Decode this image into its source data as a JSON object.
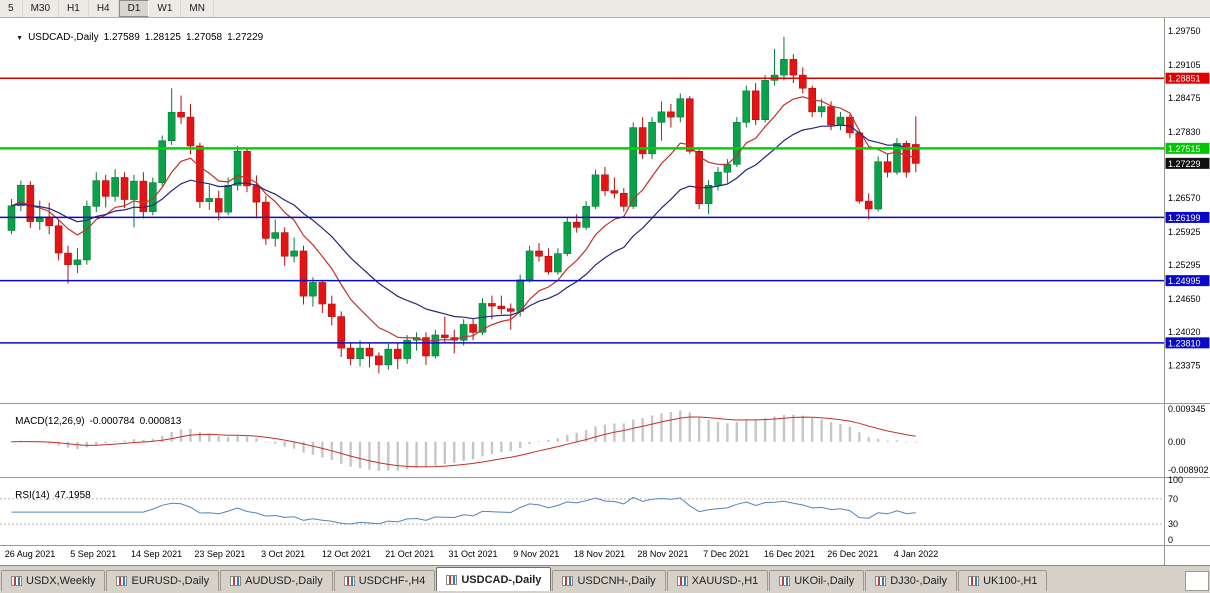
{
  "colors": {
    "bull": "#0aa14b",
    "bull_border": "#067a38",
    "bear": "#e51414",
    "bear_border": "#b30c0c",
    "ma_fast": "#c0322a",
    "ma_slow": "#26267e",
    "macd_hist": "#c6c6c6",
    "macd_signal": "#c0322a",
    "rsi_line": "#4f86c0",
    "separator": "#9b988f"
  },
  "toolbar": {
    "timeframes": [
      {
        "label": "5",
        "active": false
      },
      {
        "label": "M30",
        "active": false
      },
      {
        "label": "H1",
        "active": false
      },
      {
        "label": "H4",
        "active": false
      },
      {
        "label": "D1",
        "active": true
      },
      {
        "label": "W1",
        "active": false
      },
      {
        "label": "MN",
        "active": false
      }
    ]
  },
  "chart": {
    "symbol_timeframe": "USDCAD-,Daily",
    "open": "1.27589",
    "high": "1.28125",
    "low": "1.27058",
    "close": "1.27229"
  },
  "price_axis": {
    "ticks": [
      "1.29750",
      "1.29105",
      "1.28475",
      "1.27830",
      "1.26570",
      "1.25925",
      "1.25295",
      "1.24650",
      "1.24020",
      "1.23375"
    ],
    "line_labels": [
      {
        "text": "1.28851",
        "bg": "#e00000",
        "fg": "#ffffff"
      },
      {
        "text": "1.27515",
        "bg": "#00c800",
        "fg": "#ffffff"
      },
      {
        "text": "1.27229",
        "bg": "#101010",
        "fg": "#ffffff"
      },
      {
        "text": "1.26199",
        "bg": "#0909c8",
        "fg": "#ffffff"
      },
      {
        "text": "1.24995",
        "bg": "#0909c8",
        "fg": "#ffffff"
      },
      {
        "text": "1.23810",
        "bg": "#0909c8",
        "fg": "#ffffff"
      }
    ]
  },
  "macd": {
    "name": "MACD(12,26,9)",
    "value_main": "-0.000784",
    "value_signal": "0.000813",
    "axis_max": "0.009345",
    "axis_zero": "0.00",
    "axis_min": "-0.008902",
    "params": [
      12,
      26,
      9
    ]
  },
  "rsi": {
    "name": "RSI(14)",
    "value": "47.1958",
    "period": 14,
    "levels": [
      100,
      70,
      30,
      0
    ]
  },
  "tabs": [
    {
      "label": "USDX,Weekly",
      "active": false
    },
    {
      "label": "EURUSD-,Daily",
      "active": false
    },
    {
      "label": "AUDUSD-,Daily",
      "active": false
    },
    {
      "label": "USDCHF-,H4",
      "active": false
    },
    {
      "label": "USDCAD-,Daily",
      "active": true
    },
    {
      "label": "USDCNH-,Daily",
      "active": false
    },
    {
      "label": "XAUUSD-,H1",
      "active": false
    },
    {
      "label": "UKOil-,Daily",
      "active": false
    },
    {
      "label": "DJ30-,Daily",
      "active": false
    },
    {
      "label": "UK100-,H1",
      "active": false
    }
  ],
  "chart_data": {
    "type": "candlestick",
    "symbol": "USDCAD",
    "timeframe": "Daily",
    "title": "USDCAD-,Daily",
    "ohlc_current": {
      "open": 1.27589,
      "high": 1.28125,
      "low": 1.27058,
      "close": 1.27229
    },
    "price_range_visible": [
      1.23375,
      1.2975
    ],
    "horizontal_lines": [
      {
        "value": 1.28851,
        "color": "#e00000",
        "width": 1.5,
        "role": "resistance"
      },
      {
        "value": 1.27515,
        "color": "#00d300",
        "width": 2.5,
        "role": "resistance"
      },
      {
        "value": 1.26199,
        "color": "#0909c8",
        "width": 1.5,
        "role": "support"
      },
      {
        "value": 1.24995,
        "color": "#0909c8",
        "width": 1.5,
        "role": "support"
      },
      {
        "value": 1.2381,
        "color": "#0909c8",
        "width": 1.5,
        "role": "support"
      }
    ],
    "date_axis_labels": [
      "26 Aug 2021",
      "5 Sep 2021",
      "14 Sep 2021",
      "23 Sep 2021",
      "3 Oct 2021",
      "12 Oct 2021",
      "21 Oct 2021",
      "31 Oct 2021",
      "9 Nov 2021",
      "18 Nov 2021",
      "28 Nov 2021",
      "7 Dec 2021",
      "16 Dec 2021",
      "26 Dec 2021",
      "4 Jan 2022"
    ],
    "overlays": [
      {
        "name": "moving-average-fast",
        "color": "#c0322a"
      },
      {
        "name": "moving-average-slow",
        "color": "#26267e"
      }
    ],
    "indicators": [
      "MACD(12,26,9)",
      "RSI(14)"
    ],
    "candles": [
      [
        "2021-08-26",
        1.2595,
        1.2655,
        1.2588,
        1.2642
      ],
      [
        "2021-08-27",
        1.2642,
        1.269,
        1.2632,
        1.2681
      ],
      [
        "2021-08-30",
        1.2681,
        1.2689,
        1.26,
        1.2612
      ],
      [
        "2021-08-31",
        1.2612,
        1.2652,
        1.2596,
        1.2621
      ],
      [
        "2021-09-01",
        1.2621,
        1.2648,
        1.2588,
        1.2604
      ],
      [
        "2021-09-02",
        1.2604,
        1.2616,
        1.2538,
        1.2552
      ],
      [
        "2021-09-03",
        1.2552,
        1.2566,
        1.2494,
        1.253
      ],
      [
        "2021-09-06",
        1.253,
        1.2562,
        1.2514,
        1.2539
      ],
      [
        "2021-09-07",
        1.2539,
        1.2652,
        1.253,
        1.2641
      ],
      [
        "2021-09-08",
        1.2641,
        1.2706,
        1.263,
        1.269
      ],
      [
        "2021-09-09",
        1.269,
        1.2701,
        1.2639,
        1.266
      ],
      [
        "2021-09-10",
        1.266,
        1.2712,
        1.265,
        1.2696
      ],
      [
        "2021-09-13",
        1.2696,
        1.2706,
        1.2638,
        1.2654
      ],
      [
        "2021-09-14",
        1.2654,
        1.2701,
        1.2601,
        1.2689
      ],
      [
        "2021-09-15",
        1.2689,
        1.2706,
        1.2618,
        1.2631
      ],
      [
        "2021-09-16",
        1.2631,
        1.2696,
        1.2624,
        1.2686
      ],
      [
        "2021-09-17",
        1.2686,
        1.2776,
        1.268,
        1.2766
      ],
      [
        "2021-09-20",
        1.2766,
        1.2866,
        1.2758,
        1.282
      ],
      [
        "2021-09-21",
        1.282,
        1.2852,
        1.2798,
        1.2811
      ],
      [
        "2021-09-22",
        1.2811,
        1.2836,
        1.274,
        1.2756
      ],
      [
        "2021-09-23",
        1.2756,
        1.2762,
        1.2638,
        1.265
      ],
      [
        "2021-09-24",
        1.265,
        1.2682,
        1.2634,
        1.2656
      ],
      [
        "2021-09-27",
        1.2656,
        1.2671,
        1.2614,
        1.263
      ],
      [
        "2021-09-28",
        1.263,
        1.2696,
        1.2624,
        1.2681
      ],
      [
        "2021-09-29",
        1.2681,
        1.2756,
        1.2671,
        1.2746
      ],
      [
        "2021-09-30",
        1.2746,
        1.2752,
        1.2668,
        1.268
      ],
      [
        "2021-10-01",
        1.268,
        1.27,
        1.2618,
        1.2649
      ],
      [
        "2021-10-04",
        1.2649,
        1.2661,
        1.2568,
        1.258
      ],
      [
        "2021-10-05",
        1.258,
        1.2616,
        1.2564,
        1.2591
      ],
      [
        "2021-10-06",
        1.2591,
        1.2601,
        1.2528,
        1.2546
      ],
      [
        "2021-10-07",
        1.2546,
        1.2582,
        1.2534,
        1.2556
      ],
      [
        "2021-10-08",
        1.2556,
        1.2566,
        1.2454,
        1.247
      ],
      [
        "2021-10-11",
        1.247,
        1.2506,
        1.245,
        1.2496
      ],
      [
        "2021-10-12",
        1.2496,
        1.2501,
        1.2438,
        1.2455
      ],
      [
        "2021-10-13",
        1.2455,
        1.2471,
        1.2414,
        1.2431
      ],
      [
        "2021-10-14",
        1.2431,
        1.2441,
        1.2354,
        1.2371
      ],
      [
        "2021-10-15",
        1.2371,
        1.2381,
        1.2338,
        1.2351
      ],
      [
        "2021-10-18",
        1.2351,
        1.2386,
        1.2336,
        1.2371
      ],
      [
        "2021-10-19",
        1.2371,
        1.2381,
        1.2334,
        1.2356
      ],
      [
        "2021-10-20",
        1.2356,
        1.2363,
        1.2323,
        1.2339
      ],
      [
        "2021-10-21",
        1.2339,
        1.2379,
        1.233,
        1.2369
      ],
      [
        "2021-10-22",
        1.2369,
        1.2381,
        1.2331,
        1.2351
      ],
      [
        "2021-10-25",
        1.2351,
        1.2396,
        1.2341,
        1.2386
      ],
      [
        "2021-10-26",
        1.2386,
        1.2401,
        1.2366,
        1.2391
      ],
      [
        "2021-10-27",
        1.2391,
        1.2401,
        1.2339,
        1.2356
      ],
      [
        "2021-10-28",
        1.2356,
        1.2406,
        1.2351,
        1.2396
      ],
      [
        "2021-10-29",
        1.2396,
        1.2431,
        1.2381,
        1.2391
      ],
      [
        "2021-11-01",
        1.2391,
        1.2406,
        1.2361,
        1.2386
      ],
      [
        "2021-11-02",
        1.2386,
        1.2426,
        1.2376,
        1.2416
      ],
      [
        "2021-11-03",
        1.2416,
        1.2426,
        1.2386,
        1.2401
      ],
      [
        "2021-11-04",
        1.2401,
        1.2466,
        1.2396,
        1.2456
      ],
      [
        "2021-11-05",
        1.2456,
        1.2471,
        1.2426,
        1.2451
      ],
      [
        "2021-11-08",
        1.2451,
        1.2471,
        1.2436,
        1.2446
      ],
      [
        "2021-11-09",
        1.2446,
        1.2456,
        1.2406,
        1.2441
      ],
      [
        "2021-11-10",
        1.2441,
        1.2511,
        1.2431,
        1.2501
      ],
      [
        "2021-11-11",
        1.2501,
        1.2566,
        1.2496,
        1.2556
      ],
      [
        "2021-11-12",
        1.2556,
        1.2571,
        1.2536,
        1.2546
      ],
      [
        "2021-11-15",
        1.2546,
        1.2561,
        1.2511,
        1.2516
      ],
      [
        "2021-11-16",
        1.2516,
        1.2561,
        1.2511,
        1.2551
      ],
      [
        "2021-11-17",
        1.2551,
        1.2621,
        1.2546,
        1.2611
      ],
      [
        "2021-11-18",
        1.2611,
        1.2626,
        1.2591,
        1.2601
      ],
      [
        "2021-11-19",
        1.2601,
        1.2651,
        1.2596,
        1.2641
      ],
      [
        "2021-11-22",
        1.2641,
        1.2711,
        1.2636,
        1.2701
      ],
      [
        "2021-11-23",
        1.2701,
        1.2716,
        1.2661,
        1.2671
      ],
      [
        "2021-11-24",
        1.2671,
        1.2696,
        1.2656,
        1.2666
      ],
      [
        "2021-11-25",
        1.2666,
        1.2676,
        1.2631,
        1.2641
      ],
      [
        "2021-11-26",
        1.2641,
        1.2801,
        1.2636,
        1.2791
      ],
      [
        "2021-11-29",
        1.2791,
        1.2811,
        1.2731,
        1.2741
      ],
      [
        "2021-11-30",
        1.2741,
        1.2811,
        1.2731,
        1.2801
      ],
      [
        "2021-12-01",
        1.2801,
        1.2841,
        1.2766,
        1.2821
      ],
      [
        "2021-12-02",
        1.2821,
        1.2836,
        1.2791,
        1.2811
      ],
      [
        "2021-12-03",
        1.2811,
        1.2856,
        1.2801,
        1.2846
      ],
      [
        "2021-12-06",
        1.2846,
        1.2851,
        1.2741,
        1.2746
      ],
      [
        "2021-12-07",
        1.2746,
        1.2751,
        1.2636,
        1.2646
      ],
      [
        "2021-12-08",
        1.2646,
        1.2691,
        1.2626,
        1.2681
      ],
      [
        "2021-12-09",
        1.2681,
        1.2716,
        1.2671,
        1.2706
      ],
      [
        "2021-12-10",
        1.2706,
        1.2731,
        1.2686,
        1.2721
      ],
      [
        "2021-12-13",
        1.2721,
        1.2811,
        1.2716,
        1.2801
      ],
      [
        "2021-12-14",
        1.2801,
        1.2871,
        1.2791,
        1.2861
      ],
      [
        "2021-12-15",
        1.2861,
        1.2876,
        1.2796,
        1.2806
      ],
      [
        "2021-12-16",
        1.2806,
        1.2891,
        1.2801,
        1.2881
      ],
      [
        "2021-12-17",
        1.2881,
        1.2941,
        1.2871,
        1.2891
      ],
      [
        "2021-12-20",
        1.2891,
        1.2964,
        1.2881,
        1.2921
      ],
      [
        "2021-12-21",
        1.2921,
        1.2931,
        1.2876,
        1.2891
      ],
      [
        "2021-12-22",
        1.2891,
        1.2906,
        1.2856,
        1.2866
      ],
      [
        "2021-12-23",
        1.2866,
        1.2871,
        1.2811,
        1.2821
      ],
      [
        "2021-12-24",
        1.2821,
        1.2846,
        1.2811,
        1.2831
      ],
      [
        "2021-12-27",
        1.2831,
        1.2841,
        1.2786,
        1.2796
      ],
      [
        "2021-12-28",
        1.2796,
        1.2821,
        1.2786,
        1.2811
      ],
      [
        "2021-12-29",
        1.2811,
        1.2816,
        1.2771,
        1.2781
      ],
      [
        "2021-12-30",
        1.2781,
        1.2786,
        1.2646,
        1.2651
      ],
      [
        "2021-12-31",
        1.2651,
        1.2666,
        1.2616,
        1.2636
      ],
      [
        "2022-01-03",
        1.2636,
        1.2736,
        1.2631,
        1.2726
      ],
      [
        "2022-01-04",
        1.2726,
        1.2741,
        1.2696,
        1.2706
      ],
      [
        "2022-01-05",
        1.2706,
        1.2771,
        1.2701,
        1.2761
      ],
      [
        "2022-01-06",
        1.2761,
        1.2766,
        1.2696,
        1.2706
      ],
      [
        "2022-01-07",
        1.27589,
        1.28125,
        1.27058,
        1.27229
      ]
    ]
  }
}
